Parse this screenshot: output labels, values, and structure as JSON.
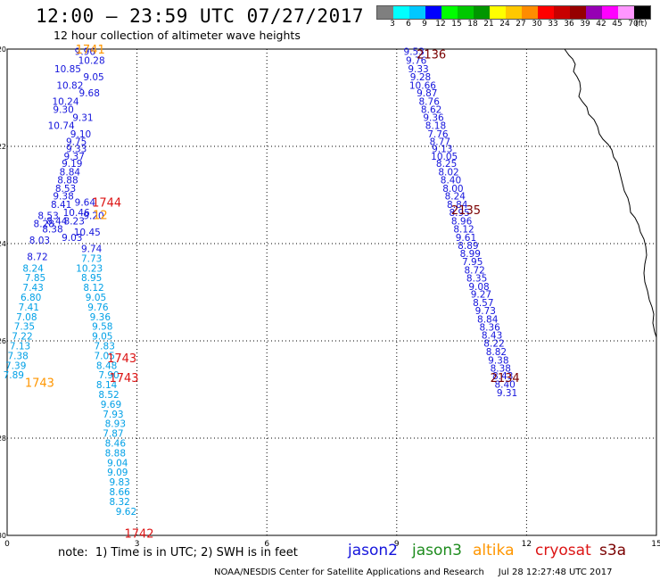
{
  "title": "12:00 – 23:59 UTC 07/27/2017",
  "subtitle": "12 hour collection of altimeter wave heights",
  "legend": {
    "unit": "(ft)",
    "labels": [
      "3",
      "6",
      "9",
      "12",
      "15",
      "18",
      "21",
      "24",
      "27",
      "30",
      "33",
      "36",
      "39",
      "42",
      "45",
      "70"
    ],
    "colors": [
      "#7f7f7f",
      "#00ffff",
      "#00c8ff",
      "#0000ff",
      "#00ff00",
      "#00c800",
      "#009600",
      "#ffff00",
      "#ffc800",
      "#ff8c00",
      "#ff0000",
      "#c80000",
      "#960000",
      "#9600b4",
      "#ff00ff",
      "#ff96ff",
      "#000000"
    ]
  },
  "axes": {
    "x_ticks": [
      "0",
      "3",
      "6",
      "9",
      "12",
      "15"
    ],
    "y_ticks": [
      "20",
      "22",
      "24",
      "26",
      "28",
      "30"
    ]
  },
  "note": "note:  1) Time is in UTC; 2) SWH is in feet",
  "satellites": [
    {
      "name": "jason2",
      "color": "#1414dc"
    },
    {
      "name": "jason3",
      "color": "#1e8c1e"
    },
    {
      "name": "altika",
      "color": "#ff9600"
    },
    {
      "name": "cryosat",
      "color": "#dc1414"
    },
    {
      "name": "s3a",
      "color": "#7a0000"
    }
  ],
  "credit": "NOAA/NESDIS Center for Satellite Applications and Research     Jul 28 12:27:48 UTC 2017",
  "time_labels": [
    {
      "text": "1741",
      "x": 1.92,
      "y": 20.0,
      "color": "#ff9600"
    },
    {
      "text": "1744",
      "x": 2.3,
      "y": 23.15,
      "color": "#dc1414"
    },
    {
      "text": "12",
      "x": 2.15,
      "y": 23.4,
      "color": "#ff9600"
    },
    {
      "text": "1743",
      "x": 2.65,
      "y": 26.35,
      "color": "#dc1414"
    },
    {
      "text": "1743",
      "x": 2.7,
      "y": 26.75,
      "color": "#dc1414"
    },
    {
      "text": "1743",
      "x": 0.75,
      "y": 26.85,
      "color": "#ff9600"
    },
    {
      "text": "1742",
      "x": 3.05,
      "y": 29.95,
      "color": "#dc1414"
    },
    {
      "text": "2136",
      "x": 9.8,
      "y": 20.1,
      "color": "#7a0000"
    },
    {
      "text": "2135",
      "x": 10.6,
      "y": 23.3,
      "color": "#7a0000"
    },
    {
      "text": "2134",
      "x": 11.5,
      "y": 26.75,
      "color": "#7a0000"
    }
  ],
  "track_a": {
    "color": "#1414dc",
    "values": [
      "9.96",
      "10.28",
      "10.85",
      "9.05",
      "10.82",
      "9.68",
      "10.24",
      "9.30",
      "9.31",
      "10.74",
      "9.10",
      "9.75",
      "9.33",
      "9.37",
      "9.19",
      "8.84",
      "8.88",
      "8.53",
      "9.38",
      "8.41",
      "10.46",
      "8.44",
      "8.23",
      "8.38",
      "9.03",
      "8.53",
      "9.64",
      "9.20",
      "8.28",
      "10.45",
      "8.03",
      "9.74",
      "8.72"
    ],
    "x": [
      1.8,
      1.95,
      1.4,
      2.0,
      1.45,
      1.9,
      1.35,
      1.3,
      1.75,
      1.25,
      1.7,
      1.6,
      1.6,
      1.55,
      1.5,
      1.45,
      1.4,
      1.35,
      1.3,
      1.25,
      1.6,
      1.15,
      1.55,
      1.05,
      1.5,
      0.95,
      1.8,
      2.0,
      0.85,
      1.85,
      0.75,
      1.95,
      0.7
    ],
    "y": [
      20.05,
      20.23,
      20.4,
      20.57,
      20.74,
      20.9,
      21.07,
      21.24,
      21.4,
      21.57,
      21.74,
      21.9,
      22.05,
      22.2,
      22.35,
      22.52,
      22.69,
      22.86,
      23.02,
      23.19,
      23.36,
      23.53,
      23.53,
      23.7,
      23.87,
      23.42,
      23.15,
      23.42,
      23.59,
      23.76,
      23.93,
      24.1,
      24.27
    ]
  },
  "track_b": {
    "color": "#00a0e6",
    "values": [
      "8.24",
      "7.73",
      "7.85",
      "10.23",
      "7.43",
      "8.95",
      "6.80",
      "8.12",
      "7.41",
      "9.05",
      "7.08",
      "9.76",
      "7.35",
      "9.36",
      "7.22",
      "9.58",
      "7.13",
      "9.05",
      "7.38",
      "7.83",
      "7.39",
      "7.05",
      "7.89",
      "8.48",
      "7.90",
      "8.14",
      "8.52",
      "9.69",
      "7.93",
      "8.93",
      "7.87",
      "8.46",
      "8.88",
      "9.04",
      "9.09",
      "9.83",
      "8.66",
      "8.32",
      "9.62"
    ],
    "x": [
      0.6,
      1.95,
      0.65,
      1.9,
      0.6,
      1.95,
      0.55,
      2.0,
      0.5,
      2.05,
      0.45,
      2.1,
      0.4,
      2.15,
      0.35,
      2.2,
      0.3,
      2.2,
      0.25,
      2.25,
      0.2,
      2.25,
      0.15,
      2.3,
      2.35,
      2.3,
      2.35,
      2.4,
      2.45,
      2.5,
      2.45,
      2.5,
      2.5,
      2.55,
      2.55,
      2.6,
      2.6,
      2.6,
      2.75
    ],
    "y": [
      24.5,
      24.3,
      24.7,
      24.5,
      24.9,
      24.7,
      25.1,
      24.9,
      25.3,
      25.1,
      25.5,
      25.3,
      25.7,
      25.5,
      25.9,
      25.7,
      26.1,
      25.9,
      26.3,
      26.1,
      26.5,
      26.3,
      26.7,
      26.5,
      26.7,
      26.9,
      27.1,
      27.3,
      27.5,
      27.7,
      27.9,
      28.1,
      28.3,
      28.5,
      28.7,
      28.9,
      29.1,
      29.3,
      29.5
    ]
  },
  "track_c": {
    "color": "#1414dc",
    "values": [
      "9.53",
      "9.76",
      "9.33",
      "9.28",
      "10.66",
      "9.87",
      "8.76",
      "8.62",
      "9.36",
      "8.18",
      "7.76",
      "8.77",
      "9.13",
      "10.05",
      "8.25",
      "8.02",
      "8.40",
      "8.00",
      "8.24",
      "8.84",
      "8.95",
      "8.96",
      "8.12",
      "9.61",
      "8.89",
      "8.99",
      "7.95",
      "8.72",
      "8.35",
      "9.08",
      "9.27",
      "8.57",
      "9.73",
      "8.84",
      "8.36",
      "8.43",
      "8.22",
      "8.82",
      "9.38",
      "8.38",
      "8.43",
      "8.40",
      "9.31"
    ],
    "x": [
      9.4,
      9.45,
      9.5,
      9.55,
      9.6,
      9.7,
      9.75,
      9.8,
      9.85,
      9.9,
      9.95,
      10.0,
      10.05,
      10.1,
      10.15,
      10.2,
      10.25,
      10.3,
      10.35,
      10.4,
      10.45,
      10.5,
      10.55,
      10.6,
      10.65,
      10.7,
      10.75,
      10.8,
      10.85,
      10.9,
      10.95,
      11.0,
      11.05,
      11.1,
      11.15,
      11.2,
      11.25,
      11.3,
      11.35,
      11.4,
      11.45,
      11.5,
      11.55
    ],
    "y": [
      20.05,
      20.23,
      20.4,
      20.57,
      20.74,
      20.9,
      21.07,
      21.24,
      21.4,
      21.57,
      21.74,
      21.9,
      22.05,
      22.2,
      22.35,
      22.52,
      22.69,
      22.86,
      23.02,
      23.19,
      23.36,
      23.53,
      23.7,
      23.87,
      24.04,
      24.2,
      24.37,
      24.54,
      24.71,
      24.88,
      25.04,
      25.21,
      25.38,
      25.55,
      25.72,
      25.88,
      26.05,
      26.22,
      26.39,
      26.56,
      26.72,
      26.89,
      27.06
    ]
  }
}
